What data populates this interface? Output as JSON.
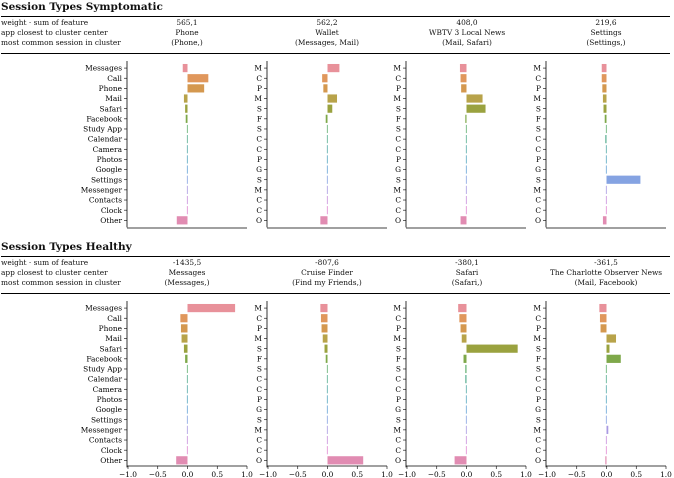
{
  "feature_labels": [
    "Messages",
    "Call",
    "Phone",
    "Mail",
    "Safari",
    "Facebook",
    "Study App",
    "Calendar",
    "Camera",
    "Photos",
    "Google",
    "Settings",
    "Messenger",
    "Contacts",
    "Clock",
    "Other"
  ],
  "feature_abbrev": [
    "M",
    "C",
    "P",
    "M",
    "S",
    "F",
    "S",
    "C",
    "C",
    "P",
    "G",
    "S",
    "M",
    "C",
    "C",
    "O"
  ],
  "feature_colors": [
    "#e8919a",
    "#e0975c",
    "#d4984f",
    "#b8a34a",
    "#9aa23f",
    "#7ea84a",
    "#5fae6e",
    "#55ad8f",
    "#55aaa8",
    "#58a8c0",
    "#66a4d6",
    "#85a3e2",
    "#a99ae2",
    "#c88fdc",
    "#e089d2",
    "#e18cb2"
  ],
  "row_labels": [
    "weight · sum of feature",
    "app closest to cluster center",
    "most common session in cluster"
  ],
  "x_ticks": [
    "−1.0",
    "−0.5",
    "0.0",
    "0.5",
    "1.0"
  ],
  "symptomatic": {
    "title": "Session Types Symptomatic",
    "columns": [
      {
        "weight": "565,1",
        "app": "Phone",
        "session": "(Phone,)"
      },
      {
        "weight": "562,2",
        "app": "Wallet",
        "session": "(Messages, Mail)"
      },
      {
        "weight": "408,0",
        "app": "WBTV 3 Local News",
        "session": "(Mail, Safari)"
      },
      {
        "weight": "219,6",
        "app": "Settings",
        "session": "(Settings,)"
      }
    ]
  },
  "healthy": {
    "title": "Session Types Healthy",
    "columns": [
      {
        "weight": "-1435,5",
        "app": "Messages",
        "session": "(Messages,)"
      },
      {
        "weight": "-807,6",
        "app": "Cruise Finder",
        "session": "(Find my Friends,)"
      },
      {
        "weight": "-380,1",
        "app": "Safari",
        "session": "(Safari,)"
      },
      {
        "weight": "-361,5",
        "app": "The Charlotte Observer News",
        "session": "(Mail, Facebook)"
      }
    ]
  },
  "chart_data": [
    {
      "type": "bar",
      "orientation": "horizontal",
      "group": "symptomatic",
      "panel": 1,
      "xlim": [
        -1.0,
        1.0
      ],
      "categories": [
        "Messages",
        "Call",
        "Phone",
        "Mail",
        "Safari",
        "Facebook",
        "Study App",
        "Calendar",
        "Camera",
        "Photos",
        "Google",
        "Settings",
        "Messenger",
        "Contacts",
        "Clock",
        "Other"
      ],
      "values": [
        -0.08,
        0.35,
        0.28,
        -0.06,
        -0.04,
        -0.03,
        -0.01,
        -0.01,
        -0.01,
        -0.01,
        -0.01,
        -0.01,
        -0.01,
        -0.01,
        -0.01,
        -0.18
      ]
    },
    {
      "type": "bar",
      "orientation": "horizontal",
      "group": "symptomatic",
      "panel": 2,
      "xlim": [
        -1.0,
        1.0
      ],
      "categories": [
        "Messages",
        "Call",
        "Phone",
        "Mail",
        "Safari",
        "Facebook",
        "Study App",
        "Calendar",
        "Camera",
        "Photos",
        "Google",
        "Settings",
        "Messenger",
        "Contacts",
        "Clock",
        "Other"
      ],
      "values": [
        0.2,
        -0.09,
        -0.07,
        0.16,
        0.08,
        -0.03,
        -0.01,
        -0.01,
        -0.01,
        -0.01,
        -0.01,
        -0.01,
        -0.01,
        -0.01,
        -0.01,
        -0.12
      ]
    },
    {
      "type": "bar",
      "orientation": "horizontal",
      "group": "symptomatic",
      "panel": 3,
      "xlim": [
        -1.0,
        1.0
      ],
      "categories": [
        "Messages",
        "Call",
        "Phone",
        "Mail",
        "Safari",
        "Facebook",
        "Study App",
        "Calendar",
        "Camera",
        "Photos",
        "Google",
        "Settings",
        "Messenger",
        "Contacts",
        "Clock",
        "Other"
      ],
      "values": [
        -0.11,
        -0.1,
        -0.09,
        0.27,
        0.32,
        -0.02,
        -0.01,
        -0.01,
        -0.01,
        -0.01,
        -0.01,
        -0.01,
        -0.01,
        -0.01,
        -0.01,
        -0.1
      ]
    },
    {
      "type": "bar",
      "orientation": "horizontal",
      "group": "symptomatic",
      "panel": 4,
      "xlim": [
        -1.0,
        1.0
      ],
      "categories": [
        "Messages",
        "Call",
        "Phone",
        "Mail",
        "Safari",
        "Facebook",
        "Study App",
        "Calendar",
        "Camera",
        "Photos",
        "Google",
        "Settings",
        "Messenger",
        "Contacts",
        "Clock",
        "Other"
      ],
      "values": [
        -0.08,
        -0.08,
        -0.07,
        -0.06,
        -0.05,
        -0.03,
        -0.01,
        -0.02,
        -0.01,
        -0.01,
        -0.01,
        0.57,
        -0.01,
        -0.01,
        -0.01,
        -0.06
      ]
    },
    {
      "type": "bar",
      "orientation": "horizontal",
      "group": "healthy",
      "panel": 1,
      "xlim": [
        -1.0,
        1.0
      ],
      "categories": [
        "Messages",
        "Call",
        "Phone",
        "Mail",
        "Safari",
        "Facebook",
        "Study App",
        "Calendar",
        "Camera",
        "Photos",
        "Google",
        "Settings",
        "Messenger",
        "Contacts",
        "Clock",
        "Other"
      ],
      "values": [
        0.8,
        -0.12,
        -0.11,
        -0.1,
        -0.06,
        -0.04,
        -0.01,
        -0.01,
        -0.01,
        -0.01,
        -0.01,
        -0.01,
        -0.01,
        -0.01,
        -0.01,
        -0.19
      ]
    },
    {
      "type": "bar",
      "orientation": "horizontal",
      "group": "healthy",
      "panel": 2,
      "xlim": [
        -1.0,
        1.0
      ],
      "categories": [
        "Messages",
        "Call",
        "Phone",
        "Mail",
        "Safari",
        "Facebook",
        "Study App",
        "Calendar",
        "Camera",
        "Photos",
        "Google",
        "Settings",
        "Messenger",
        "Contacts",
        "Clock",
        "Other"
      ],
      "values": [
        -0.12,
        -0.11,
        -0.1,
        -0.08,
        -0.05,
        -0.03,
        -0.01,
        -0.01,
        -0.01,
        -0.01,
        -0.01,
        -0.01,
        -0.01,
        -0.01,
        -0.01,
        0.6
      ]
    },
    {
      "type": "bar",
      "orientation": "horizontal",
      "group": "healthy",
      "panel": 3,
      "xlim": [
        -1.0,
        1.0
      ],
      "categories": [
        "Messages",
        "Call",
        "Phone",
        "Mail",
        "Safari",
        "Facebook",
        "Study App",
        "Calendar",
        "Camera",
        "Photos",
        "Google",
        "Settings",
        "Messenger",
        "Contacts",
        "Clock",
        "Other"
      ],
      "values": [
        -0.14,
        -0.12,
        -0.1,
        -0.08,
        0.86,
        -0.05,
        -0.02,
        -0.02,
        -0.01,
        -0.01,
        -0.01,
        -0.01,
        -0.01,
        -0.01,
        -0.01,
        -0.2
      ]
    },
    {
      "type": "bar",
      "orientation": "horizontal",
      "group": "healthy",
      "panel": 4,
      "xlim": [
        -1.0,
        1.0
      ],
      "categories": [
        "Messages",
        "Call",
        "Phone",
        "Mail",
        "Safari",
        "Facebook",
        "Study App",
        "Calendar",
        "Camera",
        "Photos",
        "Google",
        "Settings",
        "Messenger",
        "Contacts",
        "Clock",
        "Other"
      ],
      "values": [
        -0.12,
        -0.11,
        -0.1,
        0.16,
        0.05,
        0.24,
        -0.01,
        -0.01,
        -0.01,
        -0.01,
        -0.01,
        -0.01,
        0.03,
        -0.01,
        -0.01,
        -0.02
      ]
    }
  ]
}
